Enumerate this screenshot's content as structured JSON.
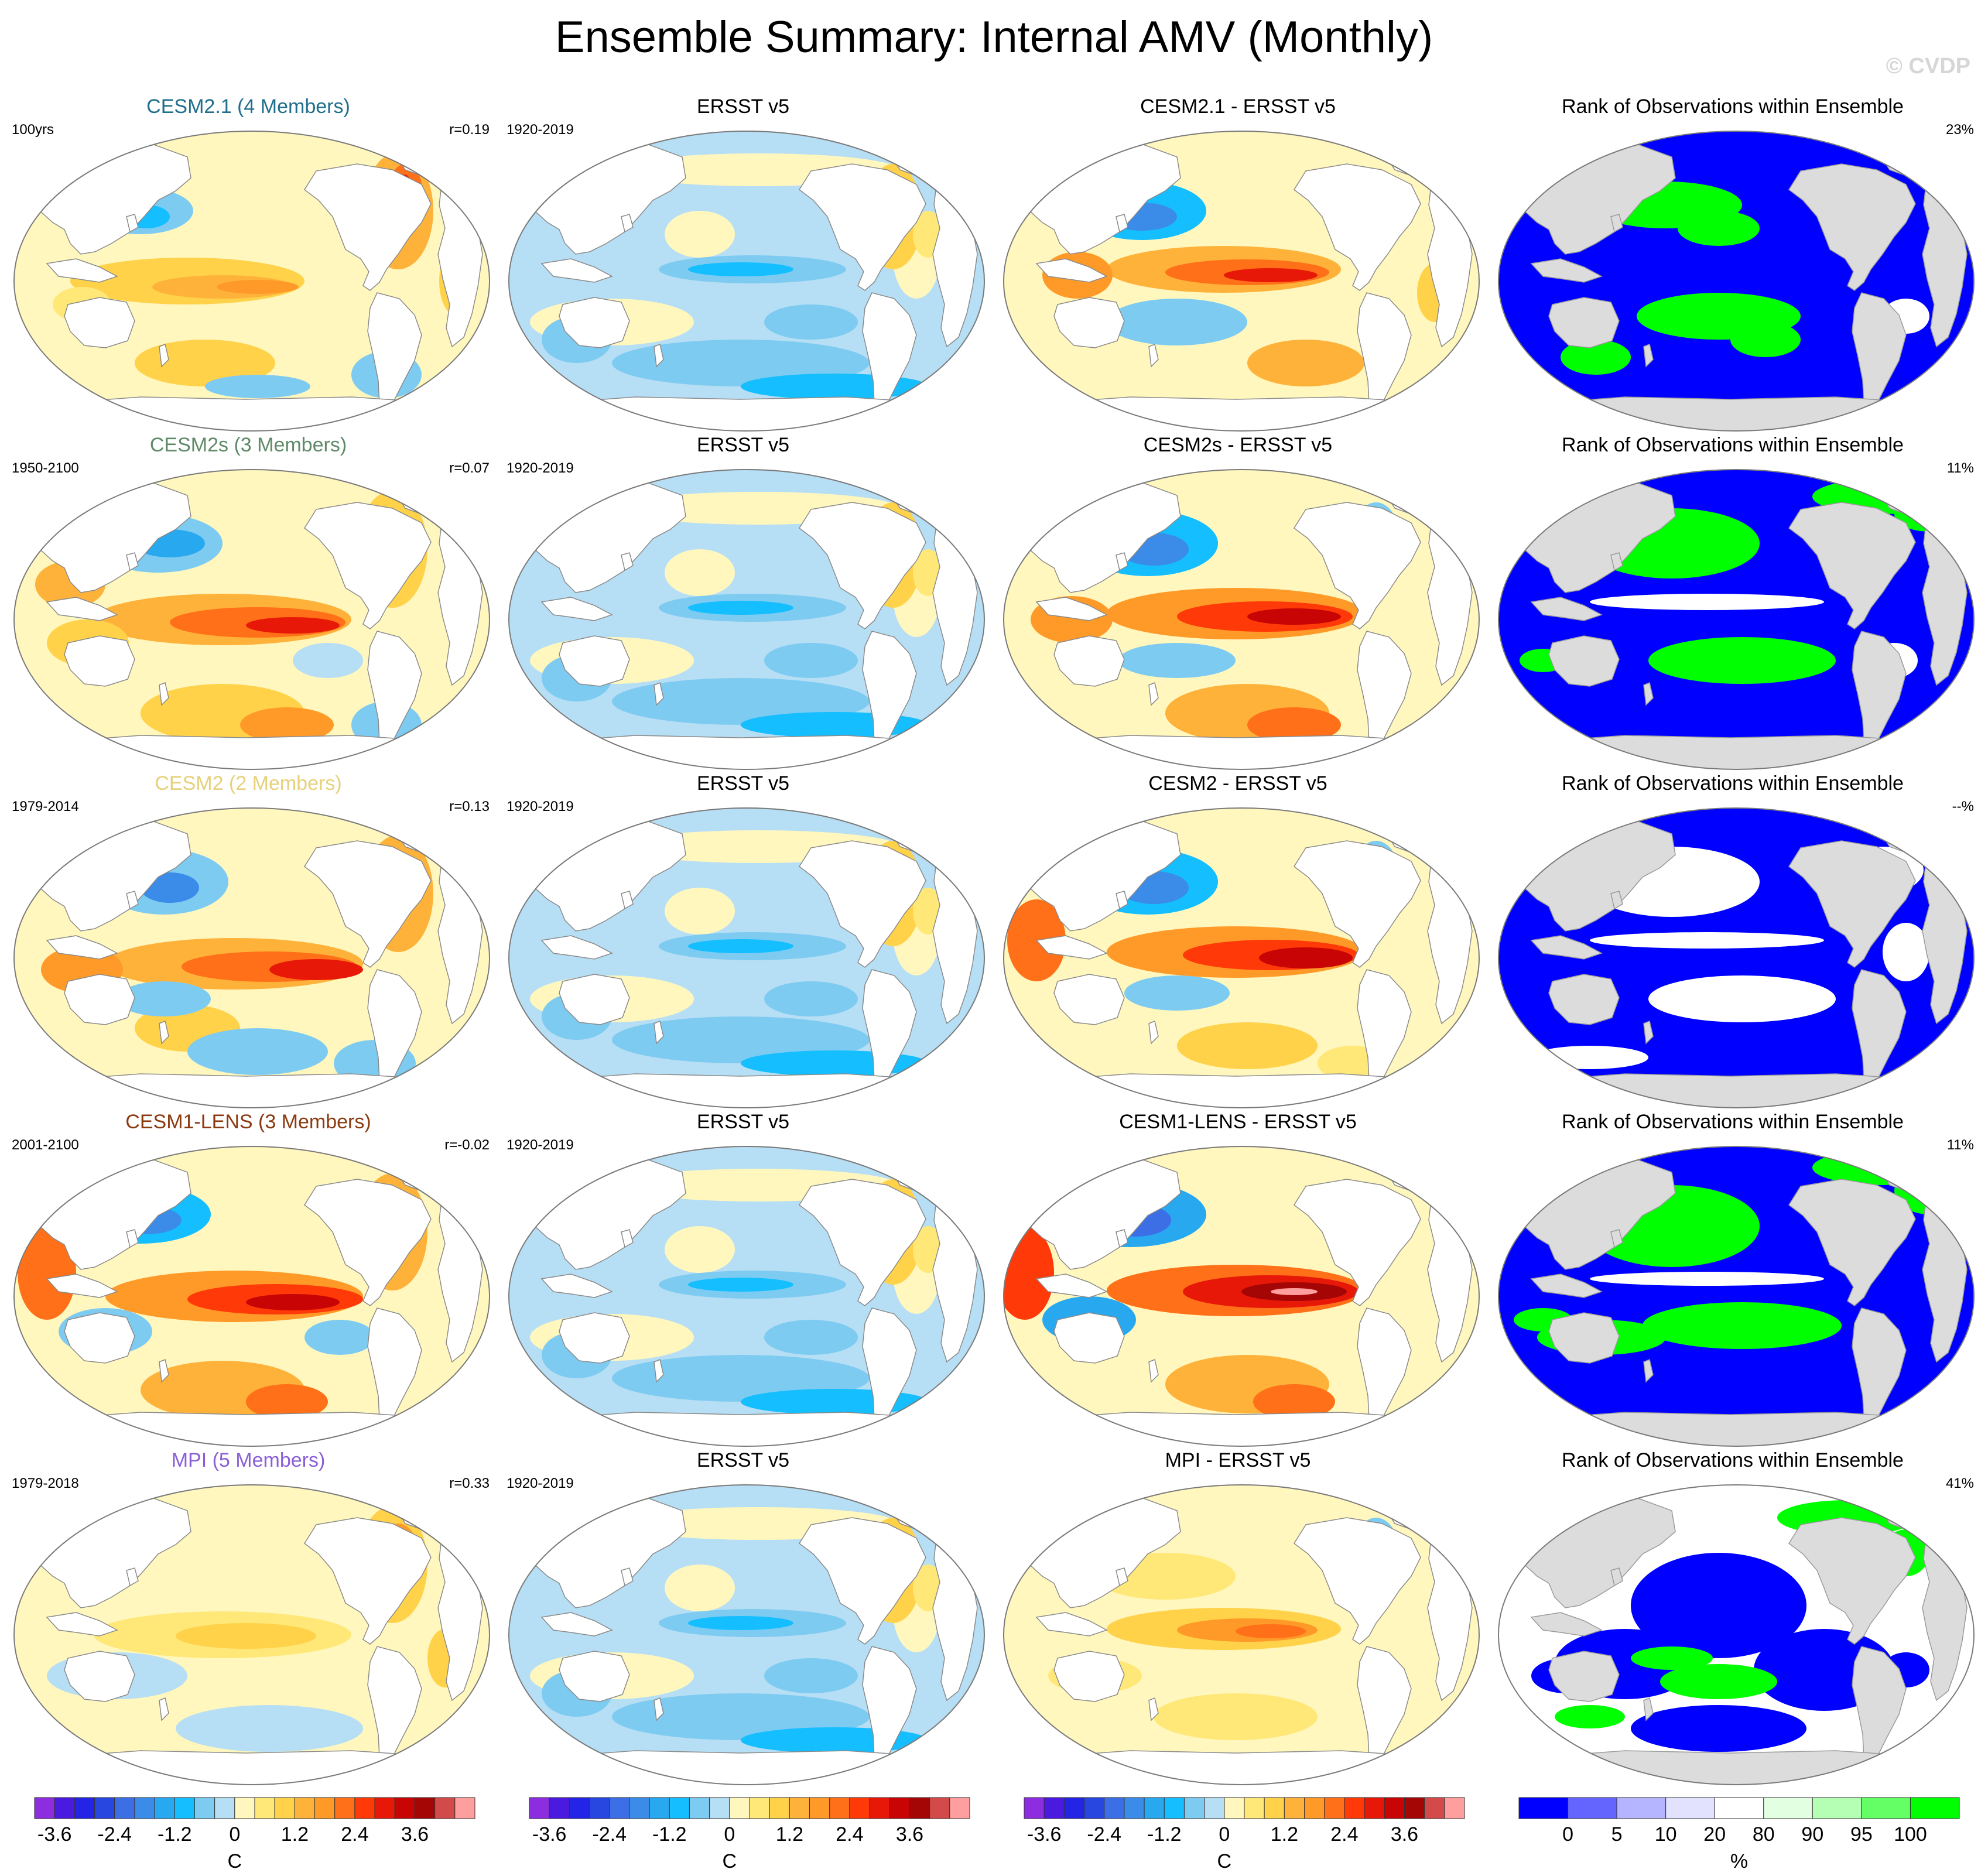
{
  "figure": {
    "title": "Ensemble Summary: Internal AMV (Monthly)",
    "copyright": "© CVDP"
  },
  "rows": [
    {
      "model": {
        "title": "CESM2.1 (4 Members)",
        "title_color": "#1f6e8c",
        "period": "100yrs",
        "corr": "r=0.19"
      },
      "obs": {
        "title": "ERSST v5",
        "period": "1920-2019"
      },
      "diff": {
        "title": "CESM2.1 - ERSST v5"
      },
      "rank": {
        "title": "Rank of Observations within Ensemble",
        "percent": "23%"
      }
    },
    {
      "model": {
        "title": "CESM2s (3 Members)",
        "title_color": "#5f8a68",
        "period": "1950-2100",
        "corr": "r=0.07"
      },
      "obs": {
        "title": "ERSST v5",
        "period": "1920-2019"
      },
      "diff": {
        "title": "CESM2s - ERSST v5"
      },
      "rank": {
        "title": "Rank of Observations within Ensemble",
        "percent": "11%"
      }
    },
    {
      "model": {
        "title": "CESM2 (2 Members)",
        "title_color": "#e6d07c",
        "period": "1979-2014",
        "corr": "r=0.13"
      },
      "obs": {
        "title": "ERSST v5",
        "period": "1920-2019"
      },
      "diff": {
        "title": "CESM2 - ERSST v5"
      },
      "rank": {
        "title": "Rank of Observations within Ensemble",
        "percent": "--%"
      }
    },
    {
      "model": {
        "title": "CESM1-LENS (3 Members)",
        "title_color": "#8b3a10",
        "period": "2001-2100",
        "corr": "r=-0.02"
      },
      "obs": {
        "title": "ERSST v5",
        "period": "1920-2019"
      },
      "diff": {
        "title": "CESM1-LENS - ERSST v5"
      },
      "rank": {
        "title": "Rank of Observations within Ensemble",
        "percent": "11%"
      }
    },
    {
      "model": {
        "title": "MPI (5 Members)",
        "title_color": "#8a5fd6",
        "period": "1979-2018",
        "corr": "r=0.33"
      },
      "obs": {
        "title": "ERSST v5",
        "period": "1920-2019"
      },
      "diff": {
        "title": "MPI - ERSST v5"
      },
      "rank": {
        "title": "Rank of Observations within Ensemble",
        "percent": "41%"
      }
    }
  ],
  "colorbars": {
    "sst": {
      "unit": "C",
      "tick_labels": [
        "-3.6",
        "-2.4",
        "-1.2",
        "0",
        "1.2",
        "2.4",
        "3.6"
      ],
      "colors": [
        "#8c2ee0",
        "#4a1ae0",
        "#2424e6",
        "#2846e0",
        "#3c6ee6",
        "#3a8ce8",
        "#28a8ef",
        "#14beff",
        "#7ecbf2",
        "#b6def4",
        "#fff7be",
        "#ffe878",
        "#ffd24a",
        "#ffb23a",
        "#ff9a28",
        "#ff7018",
        "#ff3a08",
        "#e81808",
        "#c80404",
        "#a40606",
        "#d24a4a",
        "#ff9e9e"
      ]
    },
    "rank": {
      "unit": "%",
      "tick_labels": [
        "0",
        "5",
        "10",
        "20",
        "80",
        "90",
        "95",
        "100"
      ],
      "colors": [
        "#0000ff",
        "#6464ff",
        "#b4b4ff",
        "#e2e2ff",
        "#ffffff",
        "#e2ffe2",
        "#b4ffb4",
        "#64ff64",
        "#00ff00"
      ]
    }
  }
}
